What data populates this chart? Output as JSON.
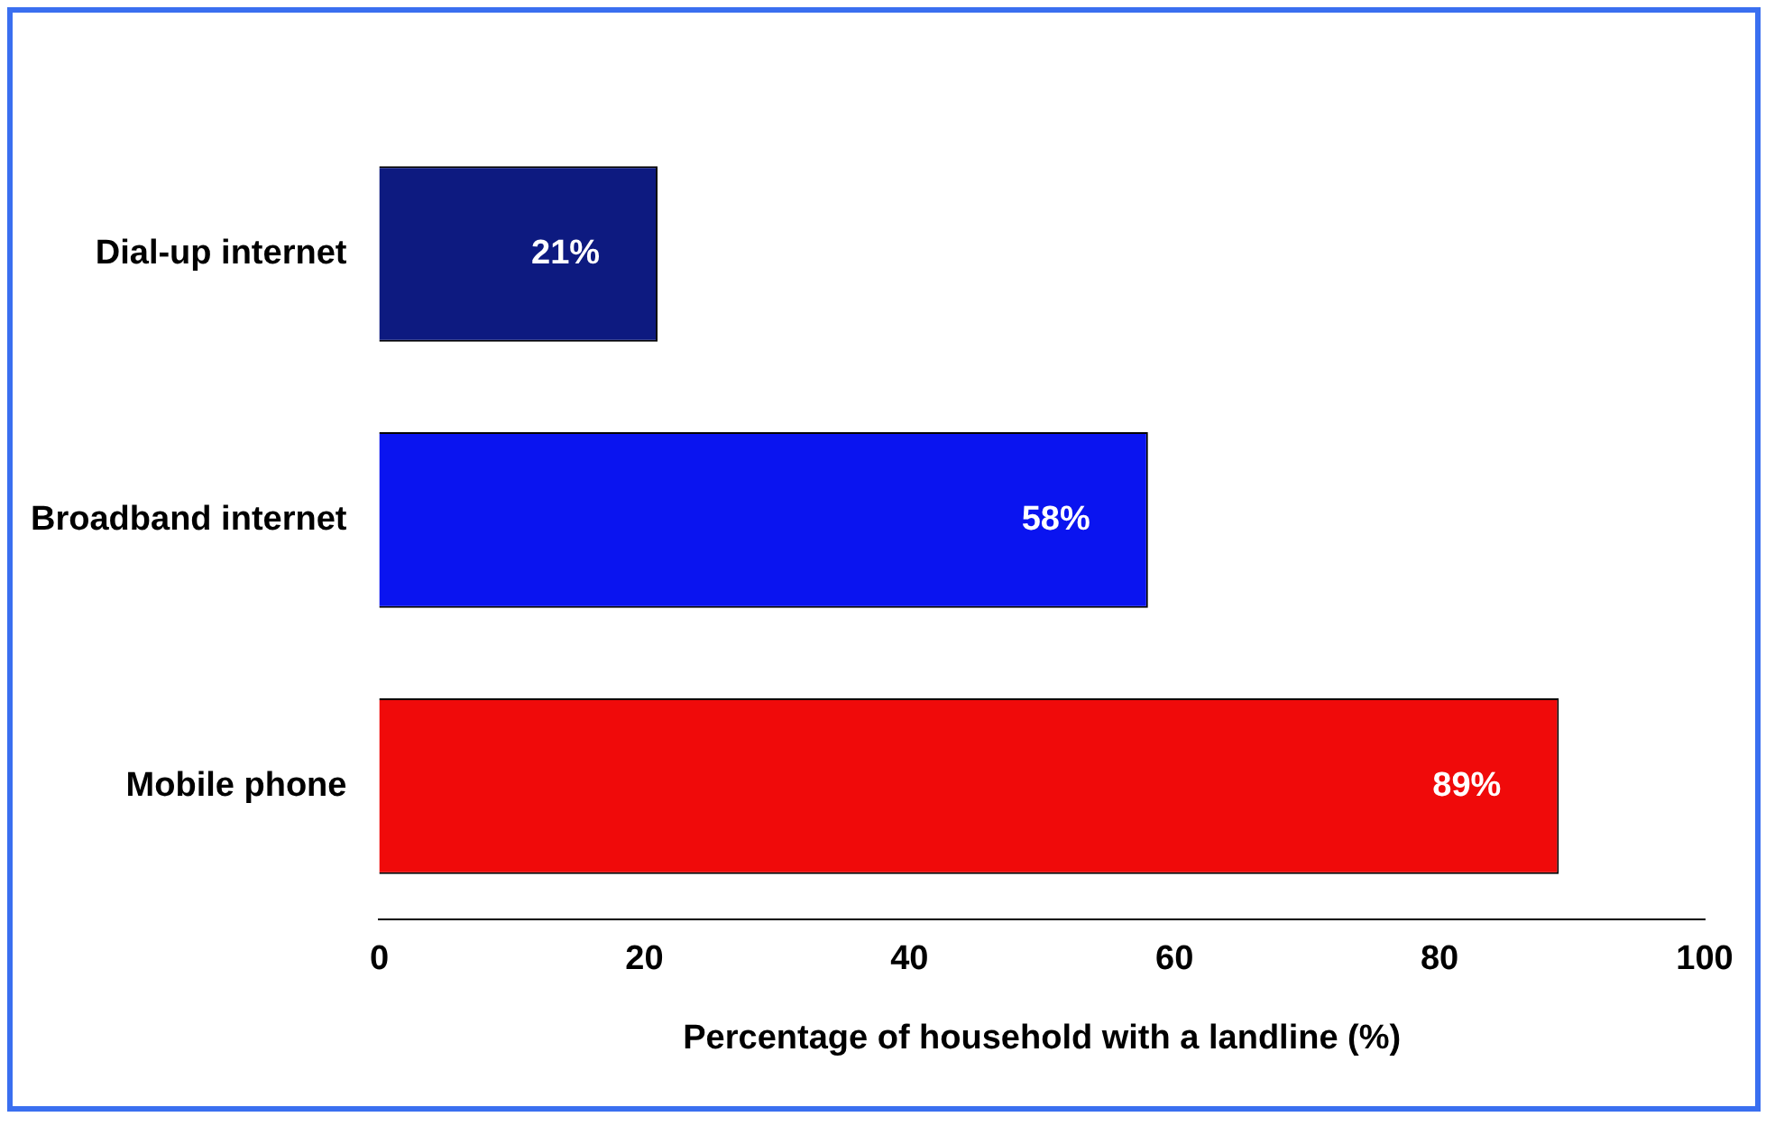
{
  "chart_data": {
    "type": "bar",
    "orientation": "horizontal",
    "categories": [
      "Dial-up internet",
      "Broadband internet",
      "Mobile phone"
    ],
    "values": [
      21,
      58,
      89
    ],
    "colors": [
      "#0d1a80",
      "#0a14f0",
      "#f00a0a"
    ],
    "xlabel": "Percentage of household with a landline (%)",
    "xlim": [
      0,
      100
    ],
    "xticks": [
      0,
      20,
      40,
      60,
      80,
      100
    ],
    "value_labels": [
      "21%",
      "58%",
      "89%"
    ],
    "grid": false,
    "legend": false
  }
}
